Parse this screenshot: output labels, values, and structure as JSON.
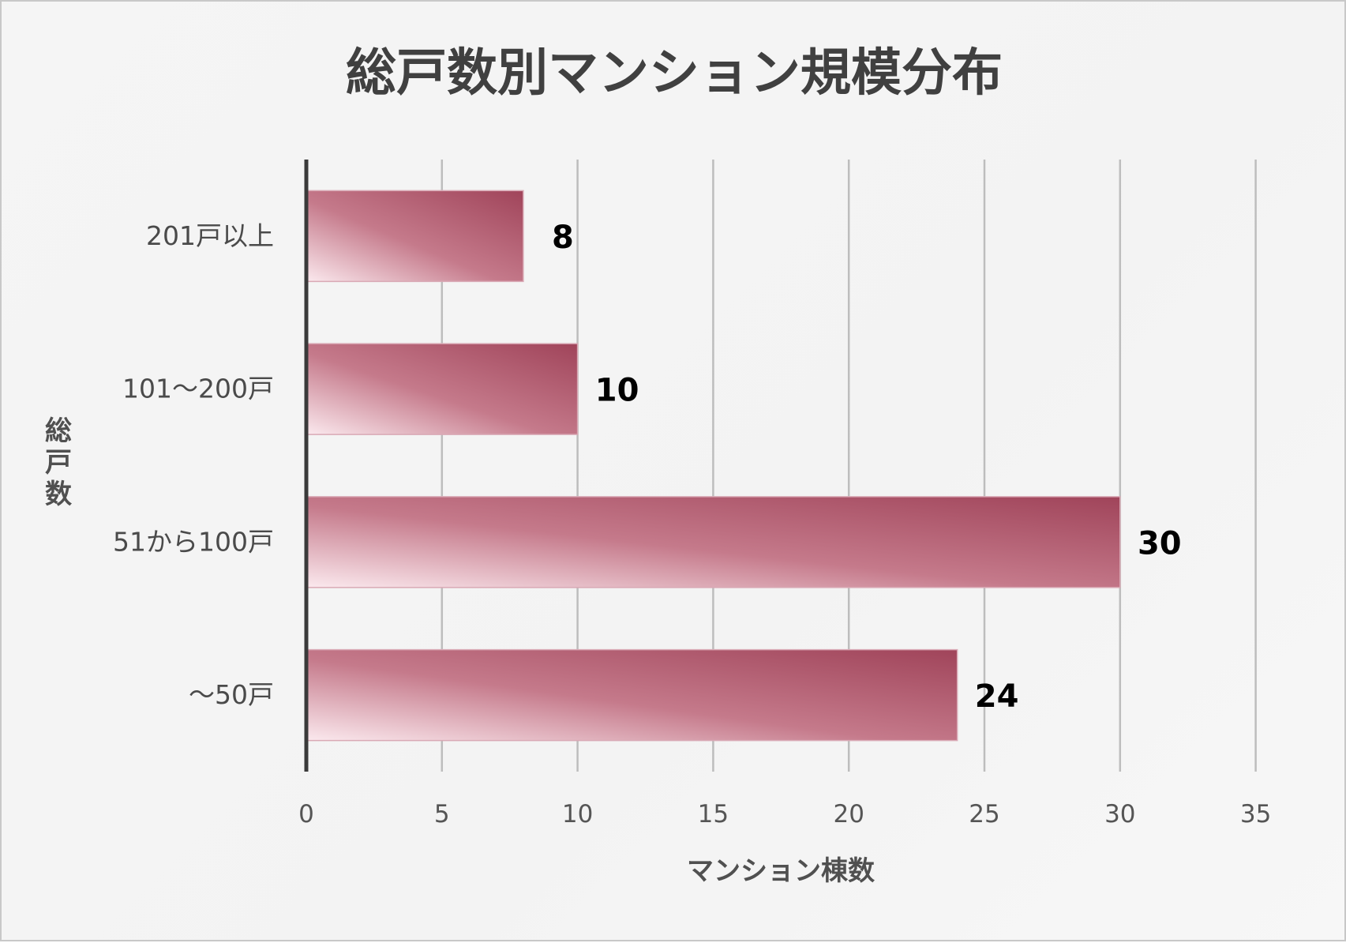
{
  "chart_data": {
    "type": "bar",
    "orientation": "horizontal",
    "title": "総戸数別マンション規模分布",
    "xlabel": "マンション棟数",
    "ylabel": "総戸数",
    "categories": [
      "201戸以上",
      "101～200戸",
      "51から100戸",
      "～50戸"
    ],
    "values": [
      8,
      10,
      30,
      24
    ],
    "xlim": [
      0,
      35
    ],
    "xticks": [
      0,
      5,
      10,
      15,
      20,
      25,
      30,
      35
    ],
    "xtick_labels": [
      "0",
      "5",
      "10",
      "15",
      "20",
      "25",
      "30",
      "35"
    ],
    "grid": true,
    "legend": "none",
    "colors": {
      "bar_dark": "#a0445a",
      "bar_mid": "#c57a8b",
      "bar_light": "#fbe9ee",
      "grid": "#bdbdbd",
      "axis": "#3a3a3a"
    }
  }
}
